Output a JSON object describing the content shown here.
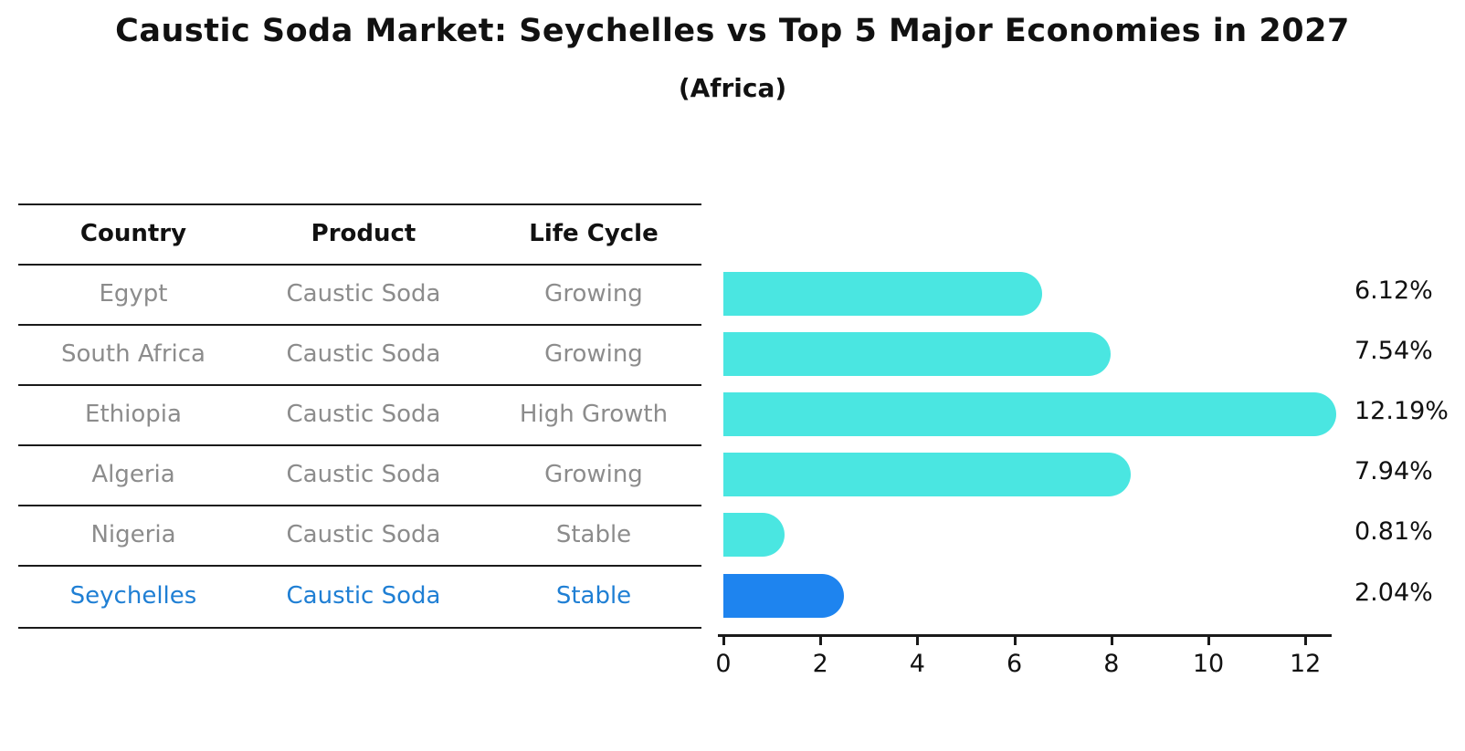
{
  "title": "Caustic Soda Market: Seychelles vs Top 5 Major Economies in 2027",
  "subtitle": "(Africa)",
  "table": {
    "headers": [
      "Country",
      "Product",
      "Life Cycle"
    ],
    "rows": [
      {
        "country": "Egypt",
        "product": "Caustic Soda",
        "life_cycle": "Growing",
        "share": "6.12%",
        "highlighted": false
      },
      {
        "country": "South Africa",
        "product": "Caustic Soda",
        "life_cycle": "Growing",
        "share": "7.54%",
        "highlighted": false
      },
      {
        "country": "Ethiopia",
        "product": "Caustic Soda",
        "life_cycle": "High Growth",
        "share": "12.19%",
        "highlighted": false
      },
      {
        "country": "Algeria",
        "product": "Caustic Soda",
        "life_cycle": "Growing",
        "share": "7.94%",
        "highlighted": false
      },
      {
        "country": "Nigeria",
        "product": "Caustic Soda",
        "life_cycle": "Stable",
        "share": "0.81%",
        "highlighted": false
      },
      {
        "country": "Seychelles",
        "product": "Caustic Soda",
        "life_cycle": "Stable",
        "share": "2.04%",
        "highlighted": true
      }
    ]
  },
  "chart_data": {
    "type": "bar",
    "orientation": "horizontal",
    "title": "Caustic Soda Market: Seychelles vs Top 5 Major Economies in 2027",
    "subtitle": "(Africa)",
    "categories": [
      "Egypt",
      "South Africa",
      "Ethiopia",
      "Algeria",
      "Nigeria",
      "Seychelles"
    ],
    "values": [
      6.12,
      7.54,
      12.19,
      7.94,
      0.81,
      2.04
    ],
    "value_labels": [
      "6.12%",
      "7.54%",
      "12.19%",
      "7.94%",
      "0.81%",
      "2.04%"
    ],
    "xlim": [
      0,
      13
    ],
    "xticks": [
      0,
      2,
      4,
      6,
      8,
      10,
      12
    ],
    "grid": false,
    "legend": false,
    "bar_color": "#4AE6E1",
    "highlight_color": "#1E84EF",
    "highlight_category": "Seychelles"
  },
  "colors": {
    "background": "#FFFFFF",
    "bar": "#4AE6E1",
    "highlight_bar": "#1E84EF",
    "highlight_border": "#1E84EF",
    "table_text": "#8C8C8C",
    "highlight_text": "#1F7FD4",
    "heading_text": "#111111",
    "line": "#1A1A1A"
  }
}
